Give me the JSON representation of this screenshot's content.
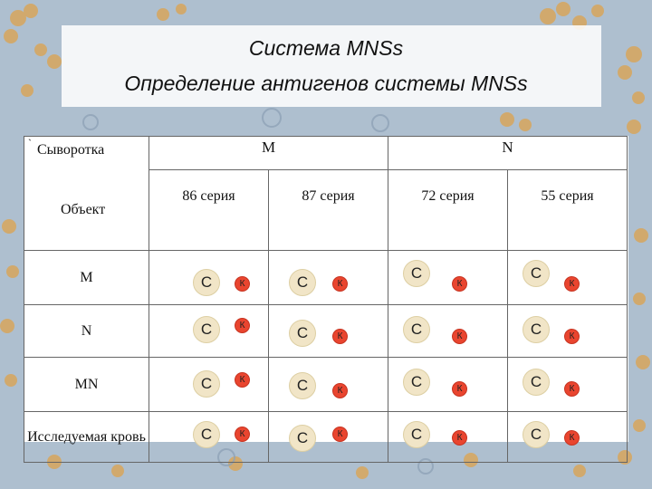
{
  "title": {
    "line1": "Система MNSs",
    "line2": "Определение антигенов системы MNSs"
  },
  "table": {
    "corner_top": "Сыворотка",
    "corner_bottom": "Объект",
    "corner_mark": "`",
    "groups": [
      "M",
      "N"
    ],
    "series": [
      "86 серия",
      "87 серия",
      "72 серия",
      "55 серия"
    ],
    "rows": [
      {
        "label": "M",
        "cells": [
          {
            "c": "C",
            "k": "К"
          },
          {
            "c": "C",
            "k": "К"
          },
          {
            "c": "C",
            "k": "К"
          },
          {
            "c": "C",
            "k": "К"
          }
        ]
      },
      {
        "label": "N",
        "cells": [
          {
            "c": "C",
            "k": "К"
          },
          {
            "c": "C",
            "k": "К"
          },
          {
            "c": "C",
            "k": "К"
          },
          {
            "c": "C",
            "k": "К"
          }
        ]
      },
      {
        "label": "MN",
        "cells": [
          {
            "c": "C",
            "k": "К"
          },
          {
            "c": "C",
            "k": "К"
          },
          {
            "c": "C",
            "k": "К"
          },
          {
            "c": "C",
            "k": "К"
          }
        ]
      },
      {
        "label": "Исследуемая кровь",
        "cells": [
          {
            "c": "C",
            "k": "К"
          },
          {
            "c": "C",
            "k": "К"
          },
          {
            "c": "C",
            "k": "К"
          },
          {
            "c": "C",
            "k": "К"
          }
        ]
      }
    ]
  },
  "colors": {
    "background": "#aebfcf",
    "cell_circle": "#f1e5c7",
    "k_circle": "#e9452f"
  }
}
